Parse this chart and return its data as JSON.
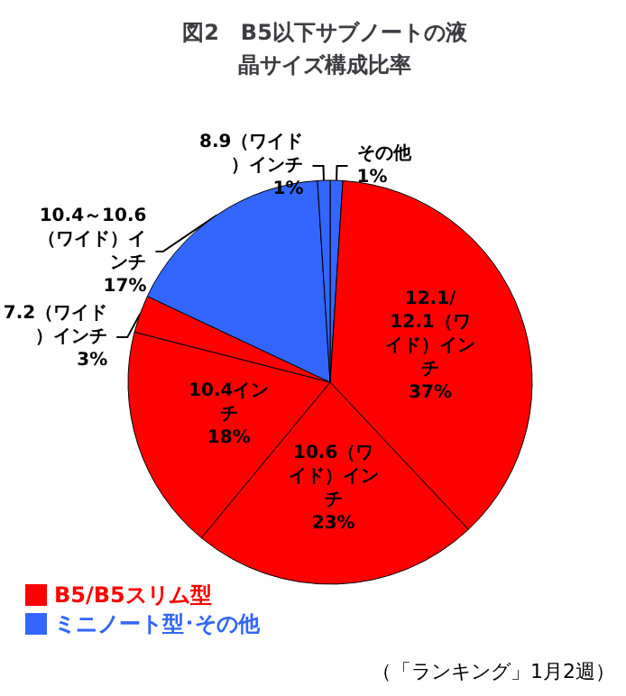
{
  "chart_data": {
    "type": "pie",
    "title": "図2　B5以下サブノートの液晶サイズ構成比率",
    "categories": [
      "その他",
      "12.1/12.1（ワイド）インチ",
      "10.6（ワイド）インチ",
      "10.4インチ",
      "7.2（ワイド）インチ",
      "10.4～10.6（ワイド）インチ",
      "8.9（ワイド）インチ"
    ],
    "values": [
      1,
      37,
      23,
      18,
      3,
      17,
      1
    ],
    "colors": [
      "#3366ff",
      "#ff0000",
      "#ff0000",
      "#ff0000",
      "#ff0000",
      "#3366ff",
      "#3366ff"
    ],
    "value_labels": [
      "1%",
      "37%",
      "23%",
      "18%",
      "3%",
      "17%",
      "1%"
    ],
    "annotations": [
      "B5/B5スリム型",
      "ミニノート型･その他",
      "（「ランキング」1月2週）"
    ]
  }
}
